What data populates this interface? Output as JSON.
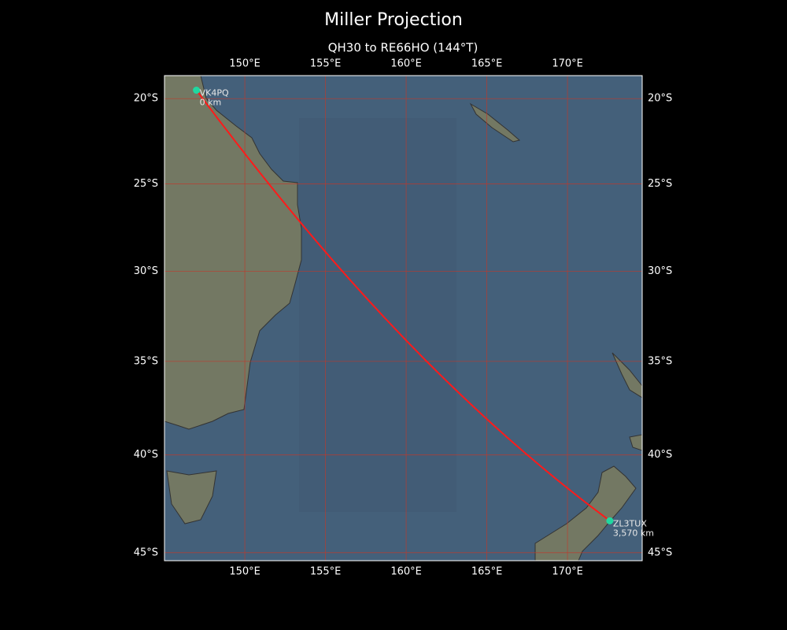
{
  "title": "Miller Projection",
  "subtitle": "QH30 to RE66HO (144°T)",
  "map": {
    "projection": "miller",
    "lonlim": [
      145.02,
      174.63
    ],
    "latlim": [
      -45.4,
      -18.63
    ],
    "lonticks": [
      {
        "value": 150,
        "label": "150°E"
      },
      {
        "value": 155,
        "label": "155°E"
      },
      {
        "value": 160,
        "label": "160°E"
      },
      {
        "value": 165,
        "label": "165°E"
      },
      {
        "value": 170,
        "label": "170°E"
      }
    ],
    "latticks": [
      {
        "value": -20,
        "label": "20°S"
      },
      {
        "value": -25,
        "label": "25°S"
      },
      {
        "value": -30,
        "label": "30°S"
      },
      {
        "value": -35,
        "label": "35°S"
      },
      {
        "value": -40,
        "label": "40°S"
      },
      {
        "value": -45,
        "label": "45°S"
      }
    ],
    "grid_color": "#c0392b",
    "path_color": "#ff1a1a"
  },
  "stations": [
    {
      "label": "VK4PQ",
      "distance": "0 km",
      "lon": 147,
      "lat": -19.5,
      "color": "#20d8a0"
    },
    {
      "label": "ZL3TUX",
      "distance": "3,570 km",
      "lon": 172.625,
      "lat": -43.396,
      "color": "#20d8a0"
    }
  ]
}
